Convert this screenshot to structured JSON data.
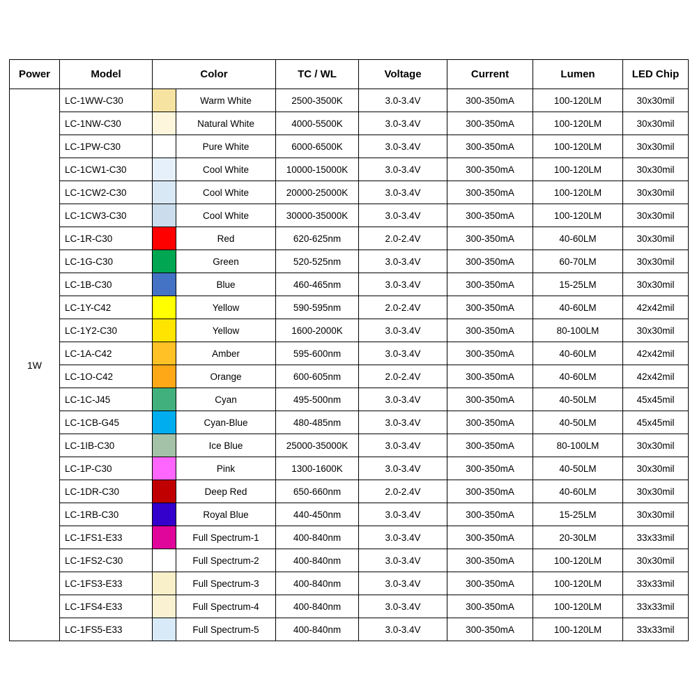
{
  "table": {
    "headers": [
      "Power",
      "Model",
      "Color",
      "TC / WL",
      "Voltage",
      "Current",
      "Lumen",
      "LED Chip"
    ],
    "power": "1W",
    "rows": [
      {
        "model": "LC-1WW-C30",
        "swatch": "#F6E3A2",
        "color": "Warm White",
        "tc_wl": "2500-3500K",
        "voltage": "3.0-3.4V",
        "current": "300-350mA",
        "lumen": "100-120LM",
        "chip": "30x30mil"
      },
      {
        "model": "LC-1NW-C30",
        "swatch": "#FDF6DC",
        "color": "Natural White",
        "tc_wl": "4000-5500K",
        "voltage": "3.0-3.4V",
        "current": "300-350mA",
        "lumen": "100-120LM",
        "chip": "30x30mil"
      },
      {
        "model": "LC-1PW-C30",
        "swatch": "#FFFFFF",
        "color": "Pure White",
        "tc_wl": "6000-6500K",
        "voltage": "3.0-3.4V",
        "current": "300-350mA",
        "lumen": "100-120LM",
        "chip": "30x30mil"
      },
      {
        "model": "LC-1CW1-C30",
        "swatch": "#E6F0FA",
        "color": "Cool White",
        "tc_wl": "10000-15000K",
        "voltage": "3.0-3.4V",
        "current": "300-350mA",
        "lumen": "100-120LM",
        "chip": "30x30mil"
      },
      {
        "model": "LC-1CW2-C30",
        "swatch": "#D8E8F5",
        "color": "Cool White",
        "tc_wl": "20000-25000K",
        "voltage": "3.0-3.4V",
        "current": "300-350mA",
        "lumen": "100-120LM",
        "chip": "30x30mil"
      },
      {
        "model": "LC-1CW3-C30",
        "swatch": "#CBDDEC",
        "color": "Cool White",
        "tc_wl": "30000-35000K",
        "voltage": "3.0-3.4V",
        "current": "300-350mA",
        "lumen": "100-120LM",
        "chip": "30x30mil"
      },
      {
        "model": "LC-1R-C30",
        "swatch": "#FF0000",
        "color": "Red",
        "tc_wl": "620-625nm",
        "voltage": "2.0-2.4V",
        "current": "300-350mA",
        "lumen": "40-60LM",
        "chip": "30x30mil"
      },
      {
        "model": "LC-1G-C30",
        "swatch": "#00A651",
        "color": "Green",
        "tc_wl": "520-525nm",
        "voltage": "3.0-3.4V",
        "current": "300-350mA",
        "lumen": "60-70LM",
        "chip": "30x30mil"
      },
      {
        "model": "LC-1B-C30",
        "swatch": "#4472C4",
        "color": "Blue",
        "tc_wl": "460-465nm",
        "voltage": "3.0-3.4V",
        "current": "300-350mA",
        "lumen": "15-25LM",
        "chip": "30x30mil"
      },
      {
        "model": "LC-1Y-C42",
        "swatch": "#FFFF00",
        "color": "Yellow",
        "tc_wl": "590-595nm",
        "voltage": "2.0-2.4V",
        "current": "300-350mA",
        "lumen": "40-60LM",
        "chip": "42x42mil"
      },
      {
        "model": "LC-1Y2-C30",
        "swatch": "#FFE400",
        "color": "Yellow",
        "tc_wl": "1600-2000K",
        "voltage": "3.0-3.4V",
        "current": "300-350mA",
        "lumen": "80-100LM",
        "chip": "30x30mil"
      },
      {
        "model": "LC-1A-C42",
        "swatch": "#FFC125",
        "color": "Amber",
        "tc_wl": "595-600nm",
        "voltage": "3.0-3.4V",
        "current": "300-350mA",
        "lumen": "40-60LM",
        "chip": "42x42mil"
      },
      {
        "model": "LC-1O-C42",
        "swatch": "#FFA817",
        "color": "Orange",
        "tc_wl": "600-605nm",
        "voltage": "2.0-2.4V",
        "current": "300-350mA",
        "lumen": "40-60LM",
        "chip": "42x42mil"
      },
      {
        "model": "LC-1C-J45",
        "swatch": "#42B07C",
        "color": "Cyan",
        "tc_wl": "495-500nm",
        "voltage": "3.0-3.4V",
        "current": "300-350mA",
        "lumen": "40-50LM",
        "chip": "45x45mil"
      },
      {
        "model": "LC-1CB-G45",
        "swatch": "#00AEEF",
        "color": "Cyan-Blue",
        "tc_wl": "480-485nm",
        "voltage": "3.0-3.4V",
        "current": "300-350mA",
        "lumen": "40-50LM",
        "chip": "45x45mil"
      },
      {
        "model": "LC-1IB-C30",
        "swatch": "#A4C2A8",
        "color": "Ice Blue",
        "tc_wl": "25000-35000K",
        "voltage": "3.0-3.4V",
        "current": "300-350mA",
        "lumen": "80-100LM",
        "chip": "30x30mil"
      },
      {
        "model": "LC-1P-C30",
        "swatch": "#FF66FF",
        "color": "Pink",
        "tc_wl": "1300-1600K",
        "voltage": "3.0-3.4V",
        "current": "300-350mA",
        "lumen": "40-50LM",
        "chip": "30x30mil"
      },
      {
        "model": "LC-1DR-C30",
        "swatch": "#C00000",
        "color": "Deep Red",
        "tc_wl": "650-660nm",
        "voltage": "2.0-2.4V",
        "current": "300-350mA",
        "lumen": "40-60LM",
        "chip": "30x30mil"
      },
      {
        "model": "LC-1RB-C30",
        "swatch": "#3300CC",
        "color": "Royal Blue",
        "tc_wl": "440-450nm",
        "voltage": "3.0-3.4V",
        "current": "300-350mA",
        "lumen": "15-25LM",
        "chip": "30x30mil"
      },
      {
        "model": "LC-1FS1-E33",
        "swatch": "#E0059B",
        "color": "Full Spectrum-1",
        "tc_wl": "400-840nm",
        "voltage": "3.0-3.4V",
        "current": "300-350mA",
        "lumen": "20-30LM",
        "chip": "33x33mil"
      },
      {
        "model": "LC-1FS2-C30",
        "swatch": "#FFFFFF",
        "color": "Full Spectrum-2",
        "tc_wl": "400-840nm",
        "voltage": "3.0-3.4V",
        "current": "300-350mA",
        "lumen": "100-120LM",
        "chip": "30x30mil"
      },
      {
        "model": "LC-1FS3-E33",
        "swatch": "#F9EFC8",
        "color": "Full Spectrum-3",
        "tc_wl": "400-840nm",
        "voltage": "3.0-3.4V",
        "current": "300-350mA",
        "lumen": "100-120LM",
        "chip": "33x33mil"
      },
      {
        "model": "LC-1FS4-E33",
        "swatch": "#FAF1D2",
        "color": "Full Spectrum-4",
        "tc_wl": "400-840nm",
        "voltage": "3.0-3.4V",
        "current": "300-350mA",
        "lumen": "100-120LM",
        "chip": "33x33mil"
      },
      {
        "model": "LC-1FS5-E33",
        "swatch": "#D8EAF8",
        "color": "Full Spectrum-5",
        "tc_wl": "400-840nm",
        "voltage": "3.0-3.4V",
        "current": "300-350mA",
        "lumen": "100-120LM",
        "chip": "33x33mil"
      }
    ]
  }
}
